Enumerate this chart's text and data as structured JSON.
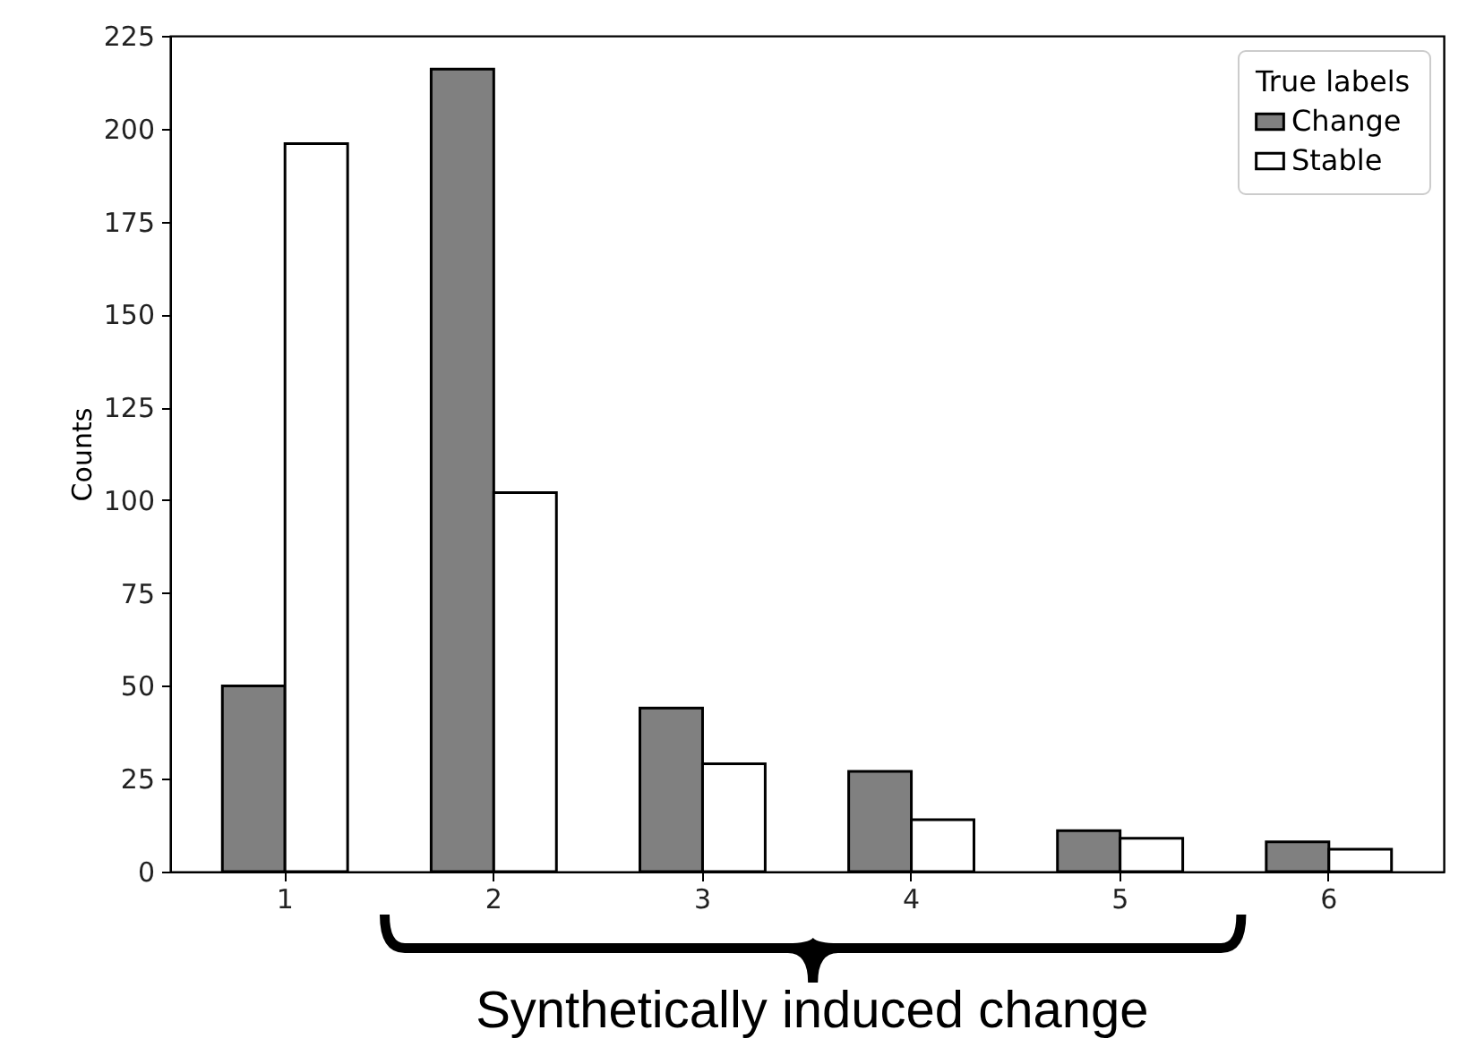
{
  "chart_data": {
    "type": "bar",
    "categories": [
      "1",
      "2",
      "3",
      "4",
      "5",
      "6"
    ],
    "ylabel": "Counts",
    "legend_title": "True labels",
    "legend": "top right",
    "grid": false,
    "ylim": [
      0,
      225
    ],
    "yticks": [
      0,
      25,
      50,
      75,
      100,
      125,
      150,
      175,
      200,
      225
    ],
    "series": [
      {
        "name": "Change",
        "color": "#808080",
        "values": [
          50,
          216,
          44,
          27,
          11,
          8
        ]
      },
      {
        "name": "Stable",
        "color": "#ffffff",
        "values": [
          196,
          102,
          29,
          14,
          9,
          6
        ]
      }
    ],
    "annotations": [
      "Synthetically induced change"
    ]
  }
}
